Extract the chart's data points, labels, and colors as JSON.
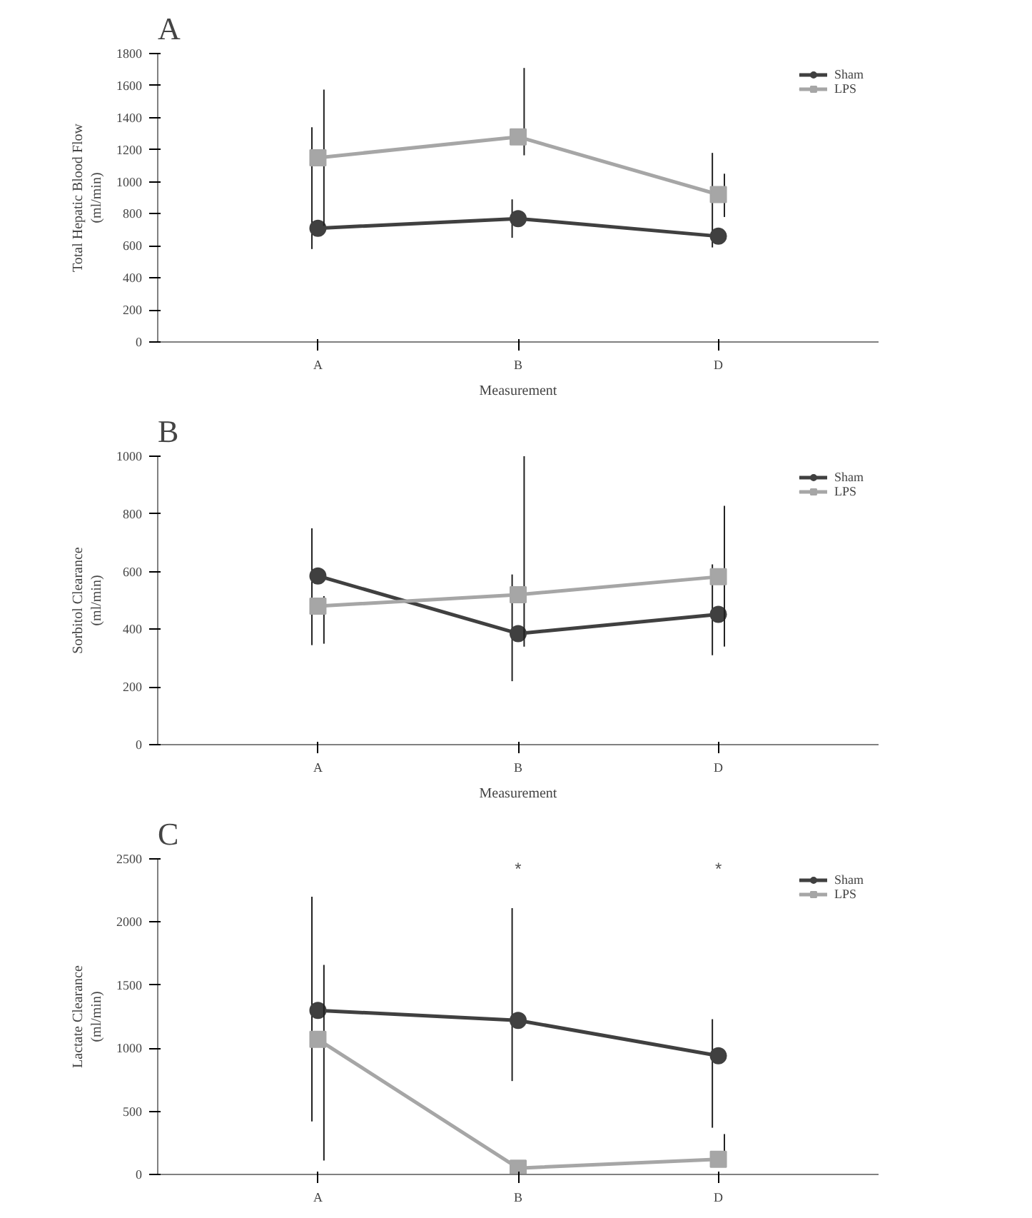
{
  "chart_data": [
    {
      "type": "line",
      "title": "A",
      "xlabel": "Measurement",
      "ylabel": "Total Hepatic Blood Flow\n(ml/min)",
      "categories": [
        "A",
        "B",
        "D"
      ],
      "ylim": [
        0,
        1800
      ],
      "yticks": [
        0,
        200,
        400,
        600,
        800,
        1000,
        1200,
        1400,
        1600,
        1800
      ],
      "grid": false,
      "legend": "top right",
      "series": [
        {
          "name": "Sham",
          "color": "#404040",
          "marker": "circle",
          "values": [
            710,
            770,
            660
          ],
          "errors": [
            [
              580,
              1340
            ],
            [
              650,
              890
            ],
            [
              590,
              1180
            ]
          ]
        },
        {
          "name": "LPS",
          "color": "#a6a6a6",
          "marker": "square",
          "values": [
            1150,
            1280,
            920
          ],
          "errors": [
            [
              725,
              1575
            ],
            [
              1165,
              1710
            ],
            [
              780,
              1050
            ]
          ]
        }
      ]
    },
    {
      "type": "line",
      "title": "B",
      "xlabel": "Measurement",
      "ylabel": "Sorbitol Clearance\n(ml/min)",
      "categories": [
        "A",
        "B",
        "D"
      ],
      "ylim": [
        0,
        1000
      ],
      "yticks": [
        0,
        200,
        400,
        600,
        800,
        1000
      ],
      "grid": false,
      "legend": "top right",
      "series": [
        {
          "name": "Sham",
          "color": "#404040",
          "marker": "circle",
          "values": [
            585,
            385,
            452
          ],
          "errors": [
            [
              345,
              750
            ],
            [
              220,
              590
            ],
            [
              310,
              625
            ]
          ]
        },
        {
          "name": "LPS",
          "color": "#a6a6a6",
          "marker": "square",
          "values": [
            480,
            520,
            582
          ],
          "errors": [
            [
              350,
              515
            ],
            [
              340,
              1000
            ],
            [
              340,
              828
            ]
          ]
        }
      ]
    },
    {
      "type": "line",
      "title": "C",
      "ylabel": "Lactate Clearance\n(ml/min)",
      "categories": [
        "A",
        "B",
        "D"
      ],
      "ylim": [
        0,
        2500
      ],
      "yticks": [
        0,
        500,
        1000,
        1500,
        2000,
        2500
      ],
      "grid": false,
      "legend": "top right",
      "annotations": [
        "*",
        "*"
      ],
      "series": [
        {
          "name": "Sham",
          "color": "#404040",
          "marker": "circle",
          "values": [
            1300,
            1220,
            940
          ],
          "errors": [
            [
              420,
              2200
            ],
            [
              740,
              2110
            ],
            [
              370,
              1230
            ]
          ]
        },
        {
          "name": "LPS",
          "color": "#a6a6a6",
          "marker": "square",
          "values": [
            1070,
            50,
            120
          ],
          "errors": [
            [
              110,
              1660
            ],
            [
              0,
              110
            ],
            [
              60,
              320
            ]
          ]
        }
      ]
    }
  ]
}
